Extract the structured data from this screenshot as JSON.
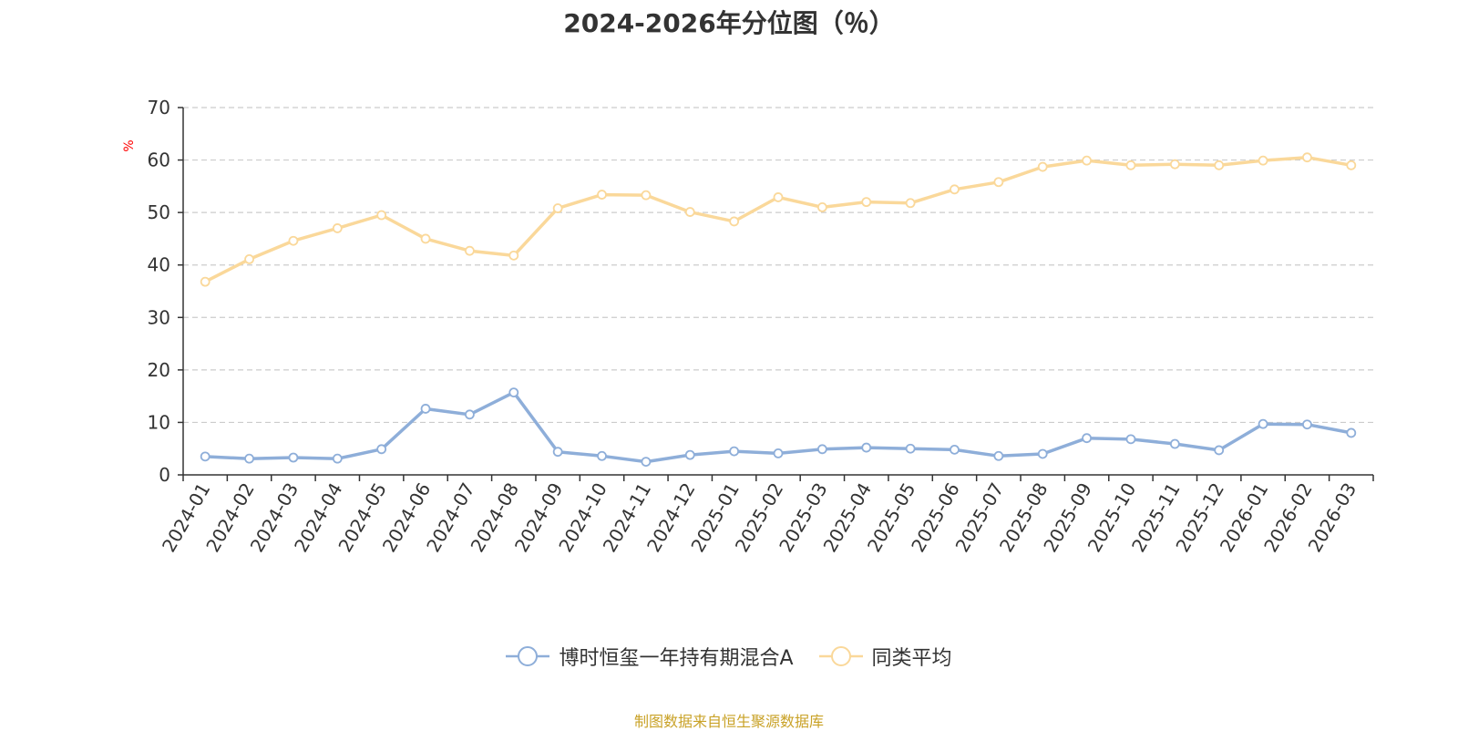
{
  "chart_data": {
    "type": "line",
    "title": "2024-2026年分位图（％）",
    "ylabel": "%",
    "ylim": [
      0,
      70
    ],
    "yticks": [
      0,
      10,
      20,
      30,
      40,
      50,
      60,
      70
    ],
    "grid": true,
    "legend_position": "bottom",
    "categories": [
      "2024-01",
      "2024-02",
      "2024-03",
      "2024-04",
      "2024-05",
      "2024-06",
      "2024-07",
      "2024-08",
      "2024-09",
      "2024-10",
      "2024-11",
      "2024-12",
      "2025-01",
      "2025-02",
      "2025-03",
      "2025-04",
      "2025-05",
      "2025-06",
      "2025-07",
      "2025-08",
      "2025-09",
      "2025-10",
      "2025-11",
      "2025-12",
      "2026-01",
      "2026-02",
      "2026-03"
    ],
    "series": [
      {
        "name": "博时恒玺一年持有期混合A",
        "color": "#8eaed9",
        "values": [
          3.5,
          3.1,
          3.3,
          3.1,
          4.9,
          12.6,
          11.5,
          15.7,
          4.4,
          3.6,
          2.5,
          3.8,
          4.5,
          4.1,
          4.9,
          5.2,
          5.0,
          4.8,
          3.6,
          4.0,
          7.0,
          6.8,
          5.9,
          4.7,
          9.7,
          9.6,
          8.0
        ]
      },
      {
        "name": "同类平均",
        "color": "#fad89a",
        "values": [
          36.8,
          41.1,
          44.6,
          47.0,
          49.5,
          45.0,
          42.7,
          41.8,
          50.8,
          53.4,
          53.3,
          50.1,
          48.3,
          52.9,
          51.0,
          52.0,
          51.8,
          54.4,
          55.8,
          58.7,
          59.9,
          59.0,
          59.2,
          59.0,
          59.9,
          60.5,
          59.0
        ]
      }
    ]
  },
  "colors": {
    "axis": "#333333",
    "grid": "#cccccc",
    "ylabel": "#ff0000",
    "source": "#c9a227"
  },
  "source_text": "制图数据来自恒生聚源数据库"
}
